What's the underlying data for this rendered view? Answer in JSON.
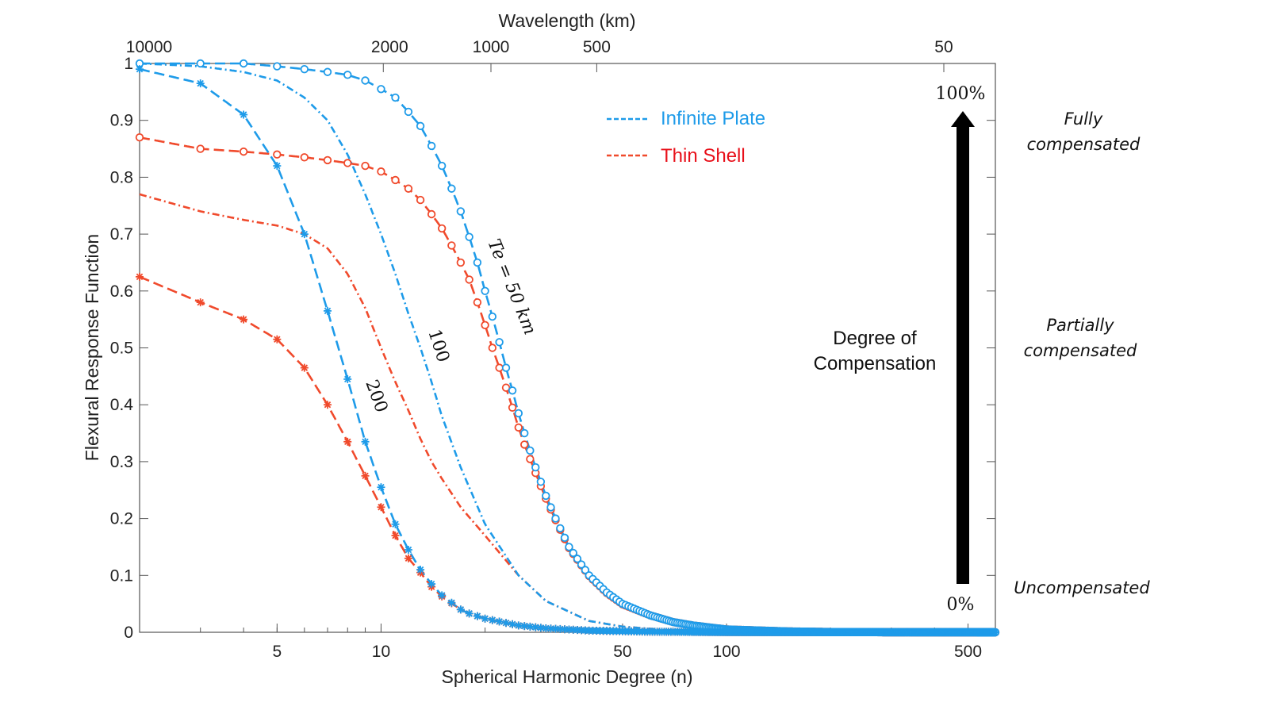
{
  "chart_data": {
    "type": "line",
    "xlabel": "Spherical Harmonic Degree (n)",
    "ylabel": "Flexural Response Function",
    "x2label": "Wavelength (km)",
    "x_scale": "log",
    "xlim": [
      2,
      600
    ],
    "ylim": [
      0,
      1
    ],
    "x_ticks": [
      5,
      10,
      50,
      100,
      500
    ],
    "x_tick_labels": [
      "5",
      "10",
      "50",
      "100",
      "500"
    ],
    "x2_ticks_km": [
      10000,
      2000,
      1000,
      500,
      50
    ],
    "x2_tick_labels": [
      "10000",
      "2000",
      "1000",
      "500",
      "50"
    ],
    "y_ticks": [
      0,
      0.1,
      0.2,
      0.3,
      0.4,
      0.5,
      0.6,
      0.7,
      0.8,
      0.9,
      1
    ],
    "y_tick_labels": [
      "0",
      "0.1",
      "0.2",
      "0.3",
      "0.4",
      "0.5",
      "0.6",
      "0.7",
      "0.8",
      "0.9",
      "1"
    ],
    "grid": false,
    "legend": {
      "placement": "top-center",
      "entries": [
        {
          "label": "Infinite Plate",
          "color": "#1E9BE9"
        },
        {
          "label": "Thin Shell",
          "color": "#F04A2C"
        }
      ]
    },
    "series": [
      {
        "model": "Infinite Plate",
        "te_label": "Te = 50 km",
        "color": "#1E9BE9",
        "style": "dashed",
        "marker": "circle",
        "x": [
          2,
          3,
          4,
          5,
          6,
          7,
          8,
          9,
          10,
          11,
          12,
          13,
          14,
          15,
          16,
          17,
          18,
          19,
          20,
          21,
          22,
          23,
          24,
          25,
          26,
          28,
          30,
          32,
          35,
          40,
          45,
          50,
          60,
          70,
          80,
          100,
          150,
          200,
          300,
          600
        ],
        "y": [
          1.0,
          1.0,
          1.0,
          0.995,
          0.99,
          0.985,
          0.98,
          0.97,
          0.955,
          0.94,
          0.915,
          0.89,
          0.855,
          0.82,
          0.78,
          0.74,
          0.695,
          0.65,
          0.6,
          0.555,
          0.51,
          0.465,
          0.425,
          0.385,
          0.35,
          0.29,
          0.24,
          0.2,
          0.15,
          0.1,
          0.07,
          0.05,
          0.03,
          0.018,
          0.012,
          0.005,
          0.0015,
          0.0005,
          0.0001,
          0
        ]
      },
      {
        "model": "Thin Shell",
        "te_label": "Te = 50 km",
        "color": "#F04A2C",
        "style": "dashed",
        "marker": "circle",
        "x": [
          2,
          3,
          4,
          5,
          6,
          7,
          8,
          9,
          10,
          11,
          12,
          13,
          14,
          15,
          16,
          17,
          18,
          19,
          20,
          21,
          22,
          23,
          24,
          25,
          26,
          28,
          30,
          32,
          35,
          40,
          45,
          50,
          60,
          70,
          80,
          100,
          150,
          200,
          300,
          600
        ],
        "y": [
          0.87,
          0.85,
          0.845,
          0.84,
          0.835,
          0.83,
          0.825,
          0.82,
          0.81,
          0.795,
          0.78,
          0.76,
          0.735,
          0.71,
          0.68,
          0.65,
          0.62,
          0.58,
          0.54,
          0.5,
          0.465,
          0.43,
          0.395,
          0.36,
          0.33,
          0.28,
          0.235,
          0.197,
          0.148,
          0.099,
          0.069,
          0.049,
          0.03,
          0.018,
          0.012,
          0.005,
          0.0015,
          0.0005,
          0.0001,
          0
        ]
      },
      {
        "model": "Infinite Plate",
        "te_label": "100",
        "color": "#1E9BE9",
        "style": "dashdot",
        "marker": "none",
        "x": [
          2,
          3,
          4,
          5,
          6,
          7,
          8,
          9,
          10,
          11,
          12,
          13,
          14,
          15,
          17,
          20,
          25,
          30,
          40,
          50,
          70,
          100,
          600
        ],
        "y": [
          1.0,
          0.995,
          0.985,
          0.97,
          0.94,
          0.9,
          0.84,
          0.77,
          0.7,
          0.63,
          0.56,
          0.5,
          0.44,
          0.38,
          0.29,
          0.19,
          0.1,
          0.055,
          0.02,
          0.01,
          0.003,
          0.001,
          0
        ]
      },
      {
        "model": "Thin Shell",
        "te_label": "100",
        "color": "#F04A2C",
        "style": "dashdot",
        "marker": "none",
        "x": [
          2,
          3,
          4,
          5,
          6,
          7,
          8,
          9,
          10,
          11,
          12,
          13,
          14,
          15,
          17,
          20,
          25,
          30,
          40,
          50,
          70,
          100,
          600
        ],
        "y": [
          0.77,
          0.74,
          0.725,
          0.715,
          0.7,
          0.675,
          0.63,
          0.57,
          0.5,
          0.44,
          0.39,
          0.34,
          0.3,
          0.27,
          0.22,
          0.17,
          0.1,
          0.055,
          0.02,
          0.01,
          0.003,
          0.001,
          0
        ]
      },
      {
        "model": "Infinite Plate",
        "te_label": "200",
        "color": "#1E9BE9",
        "style": "dashed",
        "marker": "asterisk",
        "x": [
          2,
          3,
          4,
          5,
          6,
          7,
          8,
          9,
          10,
          11,
          12,
          13,
          14,
          15,
          16,
          17,
          18,
          20,
          25,
          30,
          40,
          60,
          100,
          600
        ],
        "y": [
          0.99,
          0.965,
          0.91,
          0.82,
          0.7,
          0.565,
          0.445,
          0.335,
          0.255,
          0.19,
          0.145,
          0.11,
          0.085,
          0.065,
          0.052,
          0.04,
          0.033,
          0.024,
          0.012,
          0.007,
          0.003,
          0.001,
          0.0003,
          0
        ]
      },
      {
        "model": "Thin Shell",
        "te_label": "200",
        "color": "#F04A2C",
        "style": "dashed",
        "marker": "asterisk",
        "x": [
          2,
          3,
          4,
          5,
          6,
          7,
          8,
          9,
          10,
          11,
          12,
          13,
          14,
          15,
          16,
          17,
          18,
          20,
          25,
          30,
          40,
          60,
          100,
          600
        ],
        "y": [
          0.625,
          0.58,
          0.55,
          0.515,
          0.465,
          0.4,
          0.335,
          0.275,
          0.22,
          0.17,
          0.13,
          0.105,
          0.08,
          0.063,
          0.051,
          0.04,
          0.033,
          0.024,
          0.012,
          0.007,
          0.003,
          0.001,
          0.0003,
          0
        ]
      }
    ],
    "annotations": {
      "te50": "Te = 50 km",
      "te100": "100",
      "te200": "200",
      "arrow_top": "100%",
      "arrow_bottom": "0%",
      "arrow_title_1": "Degree of",
      "arrow_title_2": "Compensation",
      "fully_1": "Fully",
      "fully_2": "compensated",
      "partially_1": "Partially",
      "partially_2": "compensated",
      "uncompensated": "Uncompensated"
    }
  }
}
